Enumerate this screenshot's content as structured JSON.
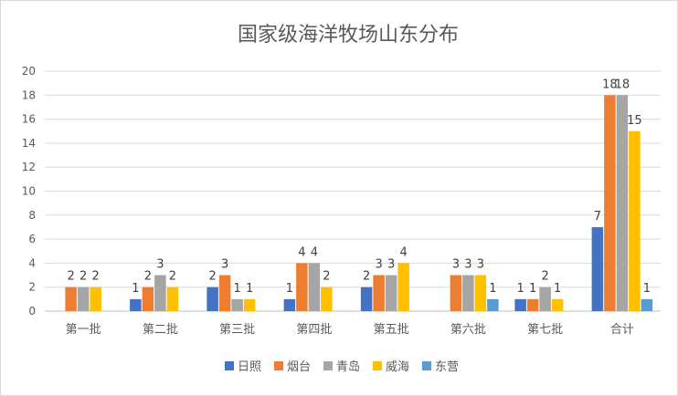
{
  "chart_data": {
    "type": "bar",
    "title": "国家级海洋牧场山东分布",
    "categories": [
      "第一批",
      "第二批",
      "第三批",
      "第四批",
      "第五批",
      "第六批",
      "第七批",
      "合计"
    ],
    "ylim": [
      0,
      20
    ],
    "yticks": [
      0,
      2,
      4,
      6,
      8,
      10,
      12,
      14,
      16,
      18,
      20
    ],
    "grid": true,
    "legend_position": "bottom",
    "series": [
      {
        "name": "日照",
        "color": "#4472C4",
        "values": [
          0,
          1,
          2,
          1,
          2,
          0,
          1,
          7
        ]
      },
      {
        "name": "烟台",
        "color": "#ED7D31",
        "values": [
          2,
          2,
          3,
          4,
          3,
          3,
          1,
          18
        ]
      },
      {
        "name": "青岛",
        "color": "#A5A5A5",
        "values": [
          2,
          3,
          1,
          4,
          3,
          3,
          2,
          18
        ]
      },
      {
        "name": "威海",
        "color": "#FFC000",
        "values": [
          2,
          2,
          1,
          2,
          4,
          3,
          1,
          15
        ]
      },
      {
        "name": "东营",
        "color": "#5B9BD5",
        "values": [
          0,
          0,
          0,
          0,
          0,
          1,
          0,
          1
        ]
      }
    ]
  }
}
